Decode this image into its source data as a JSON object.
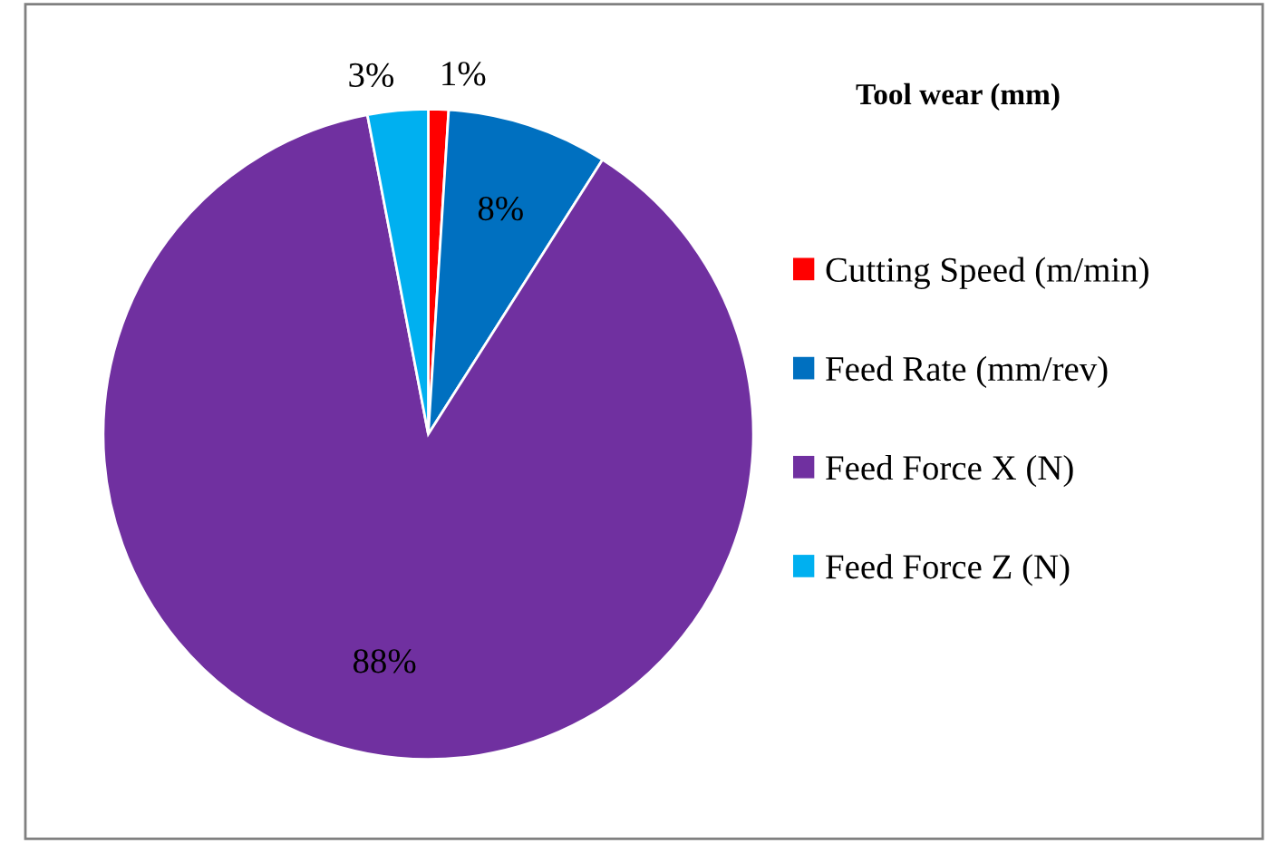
{
  "chart_data": {
    "type": "pie",
    "title": "Tool wear (mm)",
    "categories": [
      "Cutting Speed (m/min)",
      "Feed Rate (mm/rev)",
      "Feed Force X (N)",
      "Feed Force Z (N)"
    ],
    "values": [
      1,
      8,
      88,
      3
    ],
    "colors": [
      "#ff0000",
      "#0070c0",
      "#7030a0",
      "#00b0f0"
    ],
    "value_labels": [
      "1%",
      "8%",
      "88%",
      "3%"
    ],
    "legend": "right"
  }
}
